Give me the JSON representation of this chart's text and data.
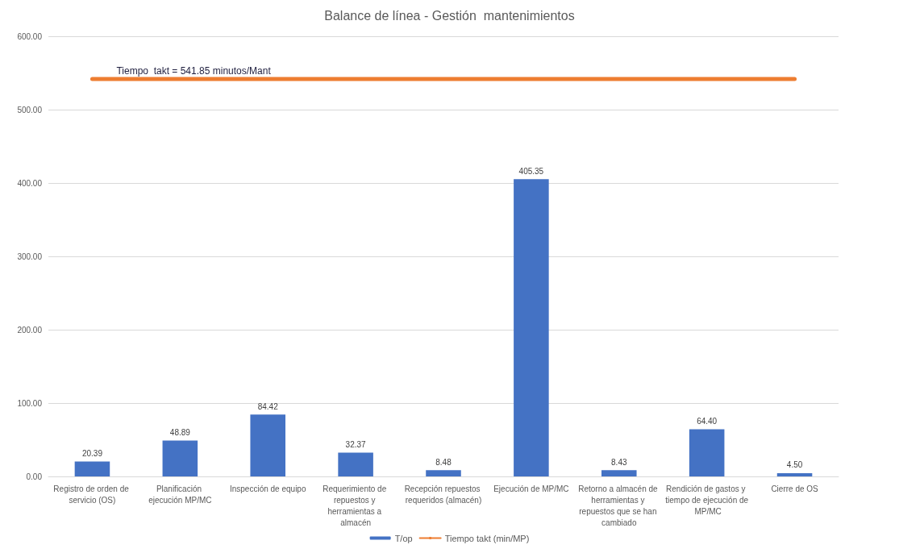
{
  "chart_data": {
    "type": "bar",
    "title": "Balance de línea - Gestión  mantenimientos",
    "categories": [
      "Registro de orden de servicio (OS)",
      "Planificación ejecución MP/MC",
      "Inspección de equipo",
      "Requerimiento de repuestos y herramientas a almacén",
      "Recepción repuestos requeridos (almacén)",
      "Ejecución de MP/MC",
      "Retorno a almacén de herramientas y repuestos que se han cambiado",
      "Rendición de gastos y tiempo de ejecución de MP/MC",
      "Cierre de OS"
    ],
    "series": [
      {
        "name": "T/op",
        "color": "#4472c4",
        "values": [
          20.39,
          48.89,
          84.42,
          32.37,
          8.48,
          405.35,
          8.43,
          64.4,
          4.5
        ],
        "value_labels": [
          "20.39",
          "48.89",
          "84.42",
          "32.37",
          "8.48",
          "405.35",
          "8.43",
          "64.40",
          "4.50"
        ]
      },
      {
        "name": "Tiempo takt (min/MP)",
        "type": "line",
        "color": "#ed7d31",
        "marker": "none",
        "values": [
          541.85,
          541.85,
          541.85,
          541.85,
          541.85,
          541.85,
          541.85,
          541.85,
          541.85
        ]
      }
    ],
    "annotations": [
      "Tiempo  takt = 541.85 minutos/Mant"
    ],
    "ylim": [
      0,
      600
    ],
    "yticks": [
      {
        "value": 0,
        "label": "0.00"
      },
      {
        "value": 100,
        "label": "100.00"
      },
      {
        "value": 200,
        "label": "200.00"
      },
      {
        "value": 300,
        "label": "300.00"
      },
      {
        "value": 400,
        "label": "400.00"
      },
      {
        "value": 500,
        "label": "500.00"
      },
      {
        "value": 600,
        "label": "600.00"
      }
    ],
    "grid": "y",
    "legend": "bottom"
  }
}
